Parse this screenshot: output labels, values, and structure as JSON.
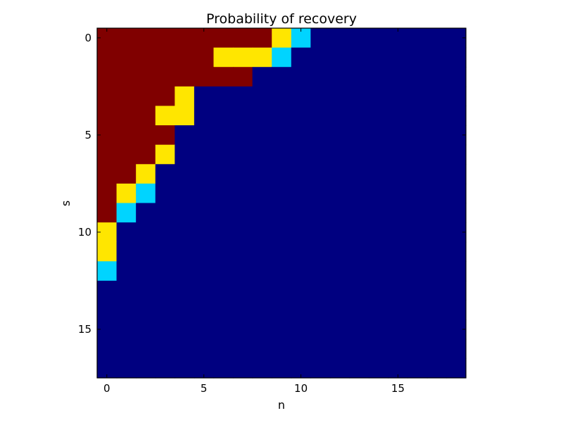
{
  "chart_data": {
    "type": "heatmap",
    "title": "Probability of recovery",
    "xlabel": "n",
    "ylabel": "s",
    "x_ticks": [
      0,
      5,
      10,
      15
    ],
    "y_ticks": [
      0,
      5,
      10,
      15
    ],
    "x_tick_labels": [
      "0",
      "5",
      "10",
      "15"
    ],
    "y_tick_labels": [
      "0",
      "5",
      "10",
      "15"
    ],
    "n_cols": 19,
    "n_rows": 18,
    "colors": {
      "0.00": "#000080",
      "0.33": "#00d4ff",
      "0.67": "#ffe600",
      "1.00": "#800000"
    },
    "values": [
      [
        1,
        1,
        1,
        1,
        1,
        1,
        1,
        1,
        1,
        0.67,
        0.33,
        0,
        0,
        0,
        0,
        0,
        0,
        0,
        0
      ],
      [
        1,
        1,
        1,
        1,
        1,
        1,
        0.67,
        0.67,
        0.67,
        0.33,
        0,
        0,
        0,
        0,
        0,
        0,
        0,
        0,
        0
      ],
      [
        1,
        1,
        1,
        1,
        1,
        1,
        1,
        1,
        0,
        0,
        0,
        0,
        0,
        0,
        0,
        0,
        0,
        0,
        0
      ],
      [
        1,
        1,
        1,
        1,
        0.67,
        0,
        0,
        0,
        0,
        0,
        0,
        0,
        0,
        0,
        0,
        0,
        0,
        0,
        0
      ],
      [
        1,
        1,
        1,
        0.67,
        0.67,
        0,
        0,
        0,
        0,
        0,
        0,
        0,
        0,
        0,
        0,
        0,
        0,
        0,
        0
      ],
      [
        1,
        1,
        1,
        1,
        0,
        0,
        0,
        0,
        0,
        0,
        0,
        0,
        0,
        0,
        0,
        0,
        0,
        0,
        0
      ],
      [
        1,
        1,
        1,
        0.67,
        0,
        0,
        0,
        0,
        0,
        0,
        0,
        0,
        0,
        0,
        0,
        0,
        0,
        0,
        0
      ],
      [
        1,
        1,
        0.67,
        0,
        0,
        0,
        0,
        0,
        0,
        0,
        0,
        0,
        0,
        0,
        0,
        0,
        0,
        0,
        0
      ],
      [
        1,
        0.67,
        0.33,
        0,
        0,
        0,
        0,
        0,
        0,
        0,
        0,
        0,
        0,
        0,
        0,
        0,
        0,
        0,
        0
      ],
      [
        1,
        0.33,
        0,
        0,
        0,
        0,
        0,
        0,
        0,
        0,
        0,
        0,
        0,
        0,
        0,
        0,
        0,
        0,
        0
      ],
      [
        0.67,
        0,
        0,
        0,
        0,
        0,
        0,
        0,
        0,
        0,
        0,
        0,
        0,
        0,
        0,
        0,
        0,
        0,
        0
      ],
      [
        0.67,
        0,
        0,
        0,
        0,
        0,
        0,
        0,
        0,
        0,
        0,
        0,
        0,
        0,
        0,
        0,
        0,
        0,
        0
      ],
      [
        0.33,
        0,
        0,
        0,
        0,
        0,
        0,
        0,
        0,
        0,
        0,
        0,
        0,
        0,
        0,
        0,
        0,
        0,
        0
      ],
      [
        0,
        0,
        0,
        0,
        0,
        0,
        0,
        0,
        0,
        0,
        0,
        0,
        0,
        0,
        0,
        0,
        0,
        0,
        0
      ],
      [
        0,
        0,
        0,
        0,
        0,
        0,
        0,
        0,
        0,
        0,
        0,
        0,
        0,
        0,
        0,
        0,
        0,
        0,
        0
      ],
      [
        0,
        0,
        0,
        0,
        0,
        0,
        0,
        0,
        0,
        0,
        0,
        0,
        0,
        0,
        0,
        0,
        0,
        0,
        0
      ],
      [
        0,
        0,
        0,
        0,
        0,
        0,
        0,
        0,
        0,
        0,
        0,
        0,
        0,
        0,
        0,
        0,
        0,
        0,
        0
      ],
      [
        0,
        0,
        0,
        0,
        0,
        0,
        0,
        0,
        0,
        0,
        0,
        0,
        0,
        0,
        0,
        0,
        0,
        0,
        0
      ]
    ]
  }
}
